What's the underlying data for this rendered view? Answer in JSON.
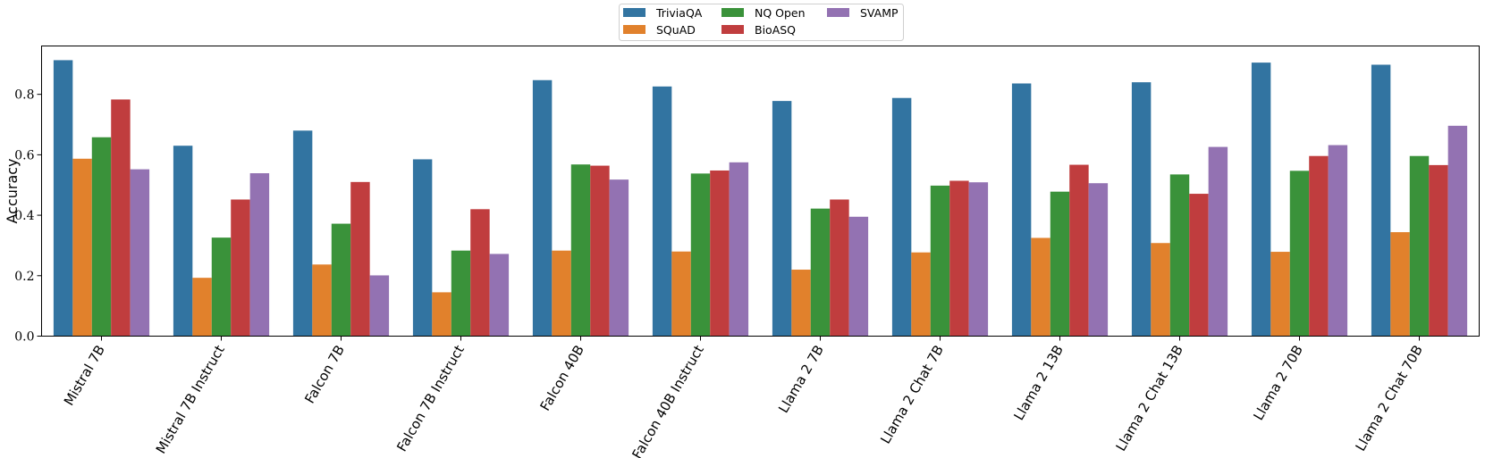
{
  "chart_data": {
    "type": "bar",
    "title": "",
    "xlabel": "",
    "ylabel": "Accuracy",
    "ylim": [
      0,
      0.96
    ],
    "yticks": [
      0.0,
      0.2,
      0.4,
      0.6,
      0.8
    ],
    "ytick_labels": [
      "0.0",
      "0.2",
      "0.4",
      "0.6",
      "0.8"
    ],
    "grid": false,
    "legend_position": "top-center",
    "categories": [
      "Mistral 7B",
      "Mistral 7B Instruct",
      "Falcon 7B",
      "Falcon 7B Instruct",
      "Falcon 40B",
      "Falcon 40B Instruct",
      "Llama 2 7B",
      "Llama 2 Chat 7B",
      "Llama 2 13B",
      "Llama 2 Chat 13B",
      "Llama 2 70B",
      "Llama 2 Chat 70B"
    ],
    "series": [
      {
        "name": "TriviaQA",
        "color": "#3274a1",
        "values": [
          0.913,
          0.63,
          0.68,
          0.585,
          0.847,
          0.826,
          0.778,
          0.788,
          0.836,
          0.84,
          0.905,
          0.898
        ]
      },
      {
        "name": "SQuAD",
        "color": "#e1812c",
        "values": [
          0.587,
          0.193,
          0.237,
          0.145,
          0.283,
          0.28,
          0.22,
          0.277,
          0.325,
          0.308,
          0.279,
          0.344
        ]
      },
      {
        "name": "NQ Open",
        "color": "#3a923a",
        "values": [
          0.658,
          0.326,
          0.372,
          0.283,
          0.568,
          0.538,
          0.422,
          0.498,
          0.478,
          0.535,
          0.547,
          0.596
        ]
      },
      {
        "name": "BioASQ",
        "color": "#c03d3e",
        "values": [
          0.783,
          0.452,
          0.51,
          0.42,
          0.564,
          0.548,
          0.452,
          0.514,
          0.567,
          0.471,
          0.596,
          0.566
        ]
      },
      {
        "name": "SVAMP",
        "color": "#9372b2",
        "values": [
          0.552,
          0.539,
          0.201,
          0.272,
          0.518,
          0.575,
          0.395,
          0.509,
          0.506,
          0.626,
          0.632,
          0.696
        ]
      }
    ]
  }
}
